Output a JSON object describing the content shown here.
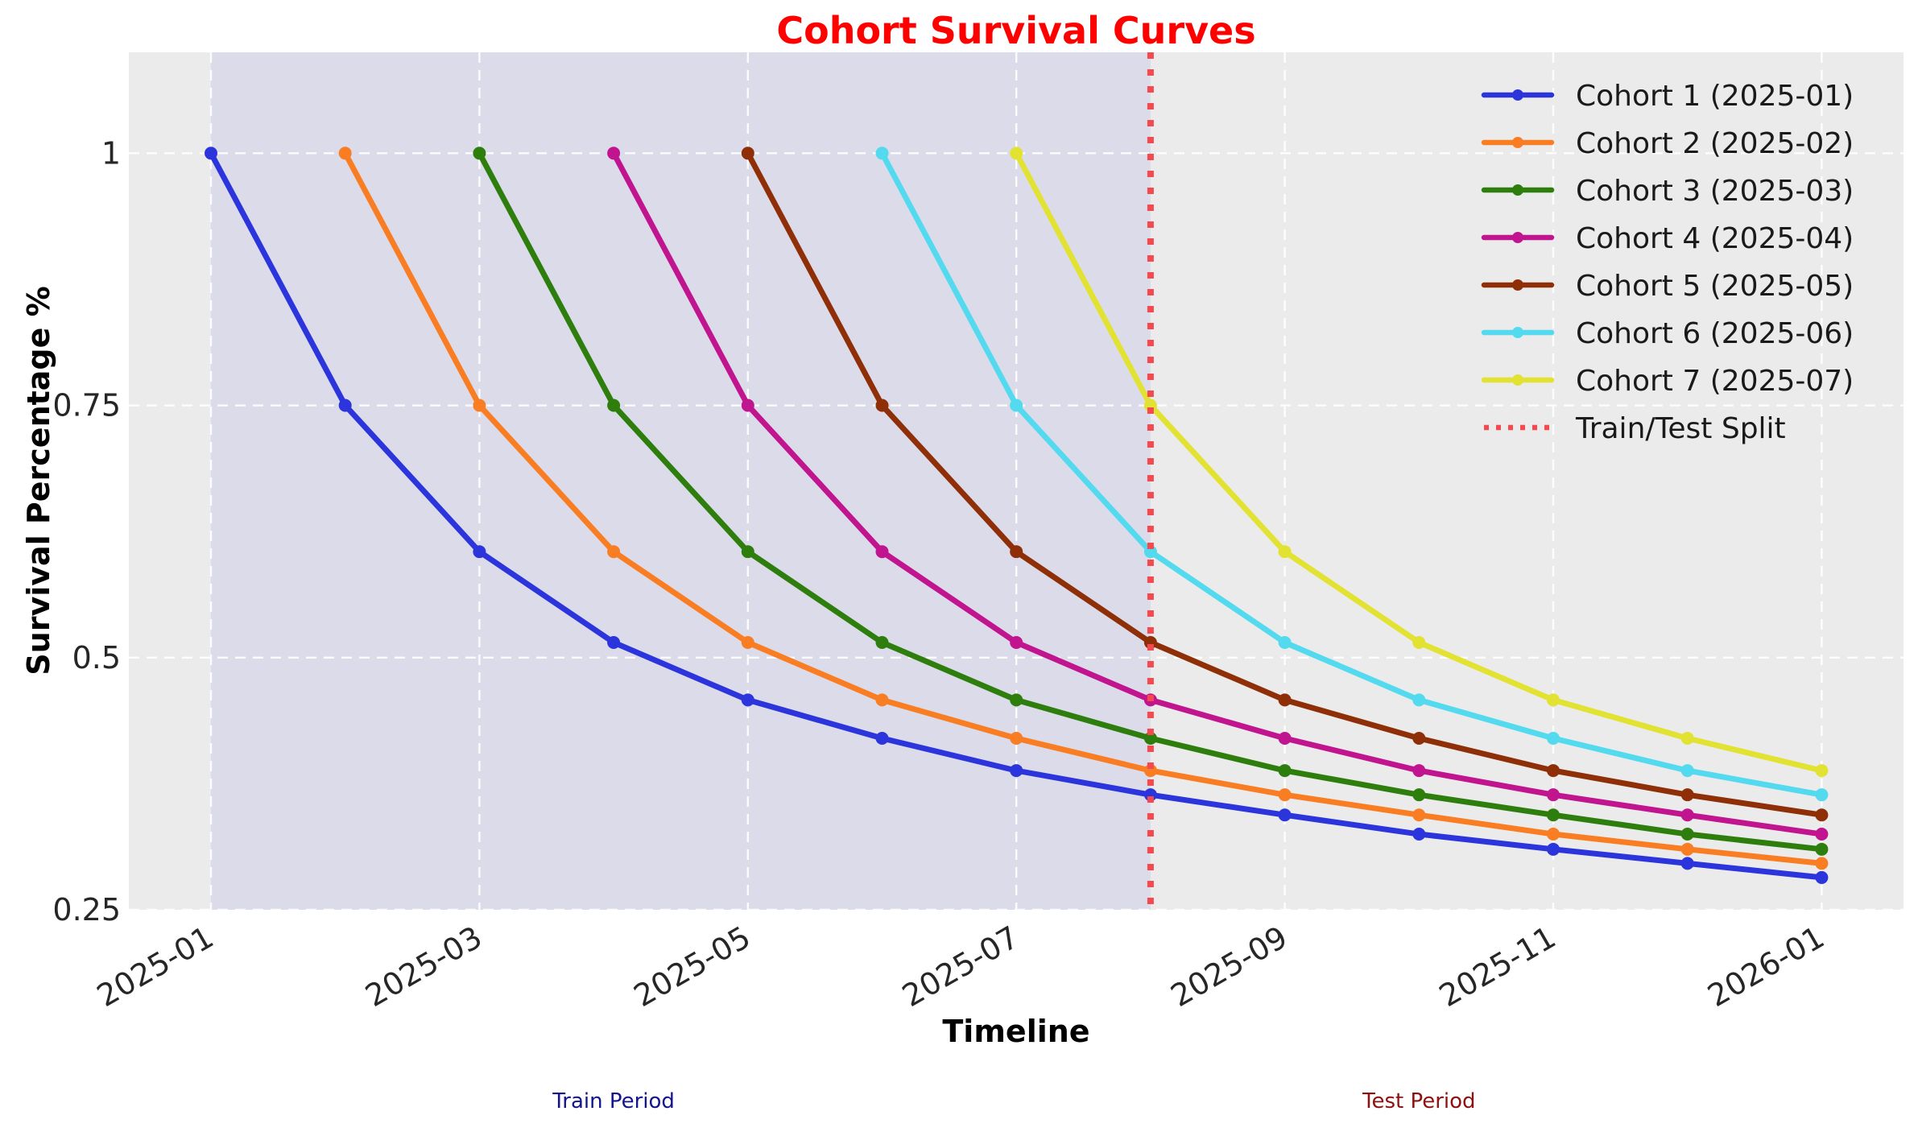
{
  "chart_data": {
    "type": "line",
    "title": "Cohort Survival Curves",
    "xlabel": "Timeline",
    "ylabel": "Survival Percentage %",
    "x_tick_labels": [
      "2025-01",
      "2025-03",
      "2025-05",
      "2025-07",
      "2025-09",
      "2025-11",
      "2026-01"
    ],
    "x_tick_month_indices": [
      0,
      2,
      4,
      6,
      8,
      10,
      12
    ],
    "y_ticks": [
      {
        "value": 1,
        "label": "1"
      },
      {
        "value": 0.75,
        "label": "0.75"
      },
      {
        "value": 0.5,
        "label": "0.5"
      },
      {
        "value": 0.25,
        "label": "0.25"
      }
    ],
    "ylim": [
      0.25,
      1.1
    ],
    "months_total": 13,
    "grid": true,
    "legend_position": "top-right",
    "series": [
      {
        "name": "Cohort 1 (2025-01)",
        "color": "#2c35dc",
        "start_month_index": 0,
        "values": [
          1.0,
          0.75,
          0.605,
          0.515,
          0.458,
          0.42,
          0.388,
          0.364,
          0.344,
          0.325,
          0.31,
          0.296,
          0.282
        ]
      },
      {
        "name": "Cohort 2 (2025-02)",
        "color": "#f97e23",
        "start_month_index": 1,
        "values": [
          1.0,
          0.75,
          0.605,
          0.515,
          0.458,
          0.42,
          0.388,
          0.364,
          0.344,
          0.325,
          0.31,
          0.296
        ]
      },
      {
        "name": "Cohort 3 (2025-03)",
        "color": "#2e7e0e",
        "start_month_index": 2,
        "values": [
          1.0,
          0.75,
          0.605,
          0.515,
          0.458,
          0.42,
          0.388,
          0.364,
          0.344,
          0.325,
          0.31
        ]
      },
      {
        "name": "Cohort 4 (2025-04)",
        "color": "#c0158f",
        "start_month_index": 3,
        "values": [
          1.0,
          0.75,
          0.605,
          0.515,
          0.458,
          0.42,
          0.388,
          0.364,
          0.344,
          0.325
        ]
      },
      {
        "name": "Cohort 5 (2025-05)",
        "color": "#8e2f08",
        "start_month_index": 4,
        "values": [
          1.0,
          0.75,
          0.605,
          0.515,
          0.458,
          0.42,
          0.388,
          0.364,
          0.344
        ]
      },
      {
        "name": "Cohort 6 (2025-06)",
        "color": "#54daee",
        "start_month_index": 5,
        "values": [
          1.0,
          0.75,
          0.605,
          0.515,
          0.458,
          0.42,
          0.388,
          0.364
        ]
      },
      {
        "name": "Cohort 7 (2025-07)",
        "color": "#e2e233",
        "start_month_index": 6,
        "values": [
          1.0,
          0.75,
          0.605,
          0.515,
          0.458,
          0.42,
          0.388
        ]
      }
    ],
    "split": {
      "label": "Train/Test Split",
      "color": "#f4494e",
      "month_index": 7,
      "style": "dotted"
    },
    "regions": {
      "train": {
        "label": "Train Period",
        "fill": "#dcdbea",
        "text_color": "#14148c",
        "start_month_index": 0,
        "end_month_index": 7,
        "annotation_month_center": 3
      },
      "test": {
        "label": "Test Period",
        "text_color": "#8e1111",
        "annotation_month_center": 9
      }
    },
    "colors": {
      "figure_bg": "#ffffff",
      "plot_bg": "#ebebeb",
      "grid": "#ffffff",
      "title": "#ff0000",
      "tick": "#262626",
      "axis_label": "#000000",
      "legend_text": "#1a1a1a"
    }
  }
}
